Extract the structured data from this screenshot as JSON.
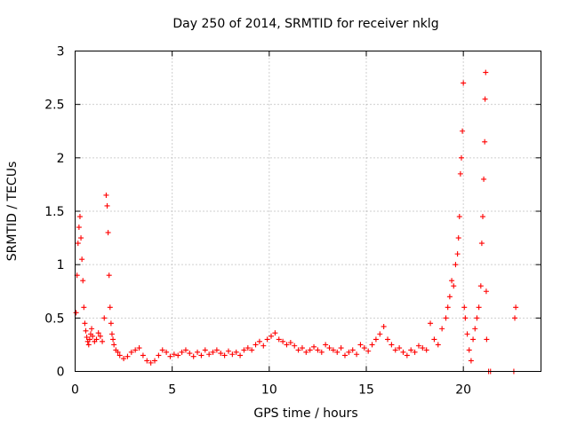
{
  "chart_data": {
    "type": "scatter",
    "title": "Day 250 of 2014, SRMTID for receiver nklg",
    "xlabel": "GPS time / hours",
    "ylabel": "SRMTID / TECUs",
    "xlim": [
      0,
      24
    ],
    "ylim": [
      0,
      3
    ],
    "x_ticks": [
      0,
      5,
      10,
      15,
      20
    ],
    "x_tick_labels": [
      "0",
      "5",
      "10",
      "15",
      "20"
    ],
    "y_ticks": [
      0,
      0.5,
      1,
      1.5,
      2,
      2.5,
      3
    ],
    "y_tick_labels": [
      "0",
      "0.5",
      "1",
      "1.5",
      "2",
      "2.5",
      "3"
    ],
    "grid": true,
    "marker": "+",
    "marker_color": "#ff0000",
    "series": [
      {
        "name": "nklg",
        "x": [
          0.05,
          0.1,
          0.15,
          0.2,
          0.25,
          0.3,
          0.35,
          0.4,
          0.45,
          0.5,
          0.55,
          0.6,
          0.65,
          0.7,
          0.75,
          0.8,
          0.85,
          0.9,
          1.0,
          1.1,
          1.2,
          1.3,
          1.4,
          1.5,
          1.6,
          1.65,
          1.7,
          1.75,
          1.8,
          1.85,
          1.9,
          1.95,
          2.0,
          2.1,
          2.2,
          2.3,
          2.5,
          2.7,
          2.9,
          3.1,
          3.3,
          3.5,
          3.7,
          3.9,
          4.1,
          4.3,
          4.5,
          4.7,
          4.9,
          5.1,
          5.3,
          5.5,
          5.7,
          5.9,
          6.1,
          6.3,
          6.5,
          6.7,
          6.9,
          7.1,
          7.3,
          7.5,
          7.7,
          7.9,
          8.1,
          8.3,
          8.5,
          8.7,
          8.9,
          9.1,
          9.3,
          9.5,
          9.7,
          9.9,
          10.1,
          10.3,
          10.5,
          10.7,
          10.9,
          11.1,
          11.3,
          11.5,
          11.7,
          11.9,
          12.1,
          12.3,
          12.5,
          12.7,
          12.9,
          13.1,
          13.3,
          13.5,
          13.7,
          13.9,
          14.1,
          14.3,
          14.5,
          14.7,
          14.9,
          15.1,
          15.3,
          15.5,
          15.7,
          15.9,
          16.1,
          16.3,
          16.5,
          16.7,
          16.9,
          17.1,
          17.3,
          17.5,
          17.7,
          17.9,
          18.1,
          18.3,
          18.5,
          18.7,
          18.9,
          19.1,
          19.2,
          19.3,
          19.4,
          19.5,
          19.6,
          19.7,
          19.75,
          19.8,
          19.85,
          19.9,
          19.95,
          20.0,
          20.05,
          20.1,
          20.2,
          20.3,
          20.4,
          20.5,
          20.6,
          20.7,
          20.8,
          20.9,
          20.95,
          21.0,
          21.05,
          21.1,
          21.12,
          21.15,
          21.18,
          21.2,
          21.3,
          21.4,
          22.6,
          22.65,
          22.7
        ],
        "y": [
          0.55,
          0.9,
          1.2,
          1.35,
          1.45,
          1.25,
          1.05,
          0.85,
          0.6,
          0.45,
          0.38,
          0.32,
          0.28,
          0.25,
          0.3,
          0.35,
          0.4,
          0.33,
          0.28,
          0.3,
          0.36,
          0.33,
          0.28,
          0.5,
          1.65,
          1.55,
          1.3,
          0.9,
          0.6,
          0.45,
          0.35,
          0.3,
          0.25,
          0.2,
          0.18,
          0.15,
          0.12,
          0.14,
          0.18,
          0.2,
          0.22,
          0.15,
          0.1,
          0.08,
          0.1,
          0.15,
          0.2,
          0.18,
          0.14,
          0.16,
          0.15,
          0.18,
          0.2,
          0.17,
          0.14,
          0.18,
          0.15,
          0.2,
          0.16,
          0.18,
          0.2,
          0.17,
          0.15,
          0.19,
          0.16,
          0.18,
          0.15,
          0.2,
          0.22,
          0.2,
          0.25,
          0.28,
          0.24,
          0.3,
          0.33,
          0.36,
          0.3,
          0.28,
          0.25,
          0.27,
          0.24,
          0.2,
          0.22,
          0.18,
          0.2,
          0.23,
          0.2,
          0.18,
          0.25,
          0.22,
          0.2,
          0.18,
          0.22,
          0.15,
          0.18,
          0.2,
          0.16,
          0.25,
          0.22,
          0.19,
          0.25,
          0.3,
          0.35,
          0.42,
          0.3,
          0.25,
          0.2,
          0.22,
          0.18,
          0.15,
          0.2,
          0.18,
          0.24,
          0.22,
          0.2,
          0.45,
          0.3,
          0.25,
          0.4,
          0.5,
          0.6,
          0.7,
          0.85,
          0.8,
          1.0,
          1.1,
          1.25,
          1.45,
          1.85,
          2.0,
          2.25,
          2.7,
          0.6,
          0.5,
          0.35,
          0.2,
          0.1,
          0.3,
          0.4,
          0.5,
          0.6,
          0.8,
          1.2,
          1.45,
          1.8,
          2.15,
          2.55,
          2.8,
          0.75,
          0.3,
          0.0,
          0.0,
          0.0,
          0.5,
          0.6
        ]
      }
    ]
  }
}
